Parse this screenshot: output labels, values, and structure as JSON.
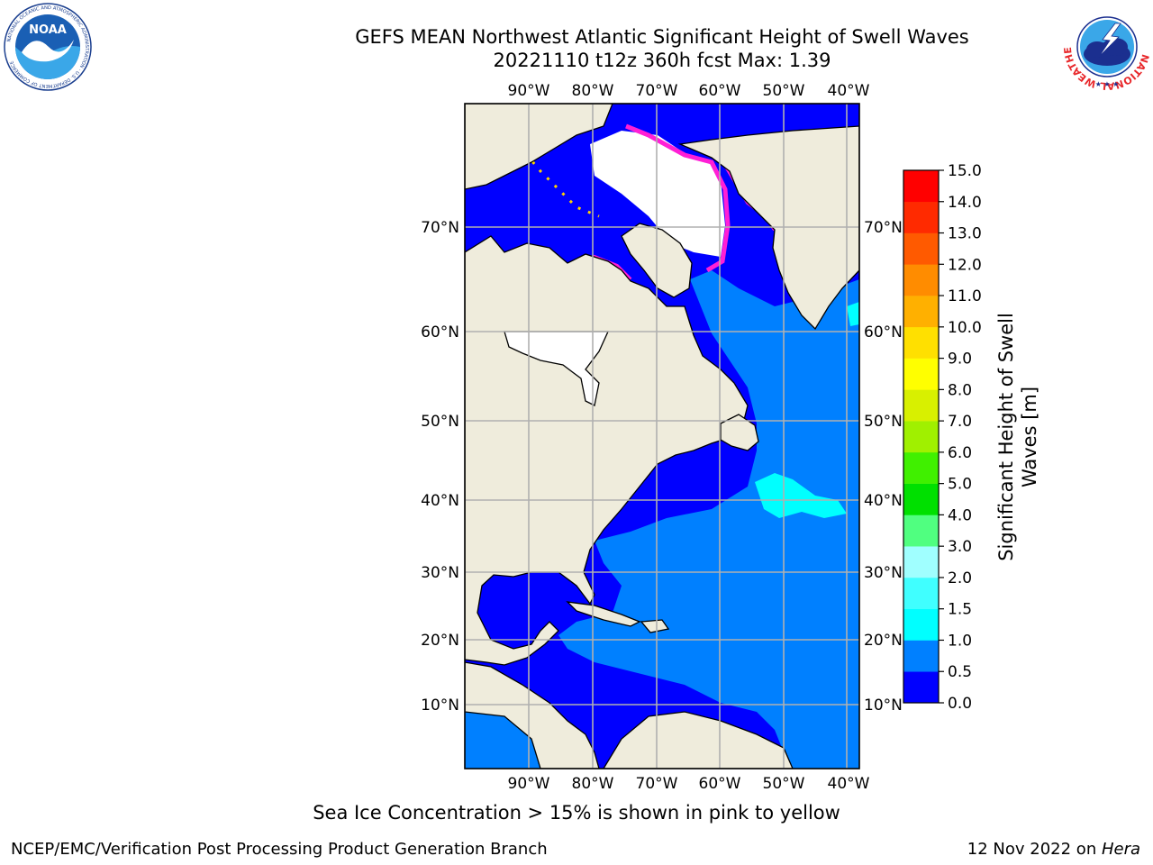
{
  "header": {
    "title_line1": "GEFS MEAN Northwest Atlantic Significant Height of Swell Waves",
    "title_line2": "20221110 t12z 360h fcst   Max: 1.39"
  },
  "map": {
    "lon_labels": [
      "90°W",
      "80°W",
      "70°W",
      "60°W",
      "50°W",
      "40°W"
    ],
    "lat_labels": [
      "70°N",
      "60°N",
      "50°N",
      "40°N",
      "30°N",
      "20°N",
      "10°N"
    ],
    "land_color": "#efecdc",
    "ice_color": "#ffffff",
    "ice_edge_colors": [
      "#ff1fd6",
      "#ff8c8c",
      "#ffd400"
    ]
  },
  "colorbar": {
    "label_line1": "Significant Height of Swell",
    "label_line2": "Waves [m]",
    "ticks": [
      "0.0",
      "0.5",
      "1.0",
      "1.5",
      "2.0",
      "3.0",
      "4.0",
      "5.0",
      "6.0",
      "7.0",
      "8.0",
      "9.0",
      "10.0",
      "11.0",
      "12.0",
      "13.0",
      "14.0",
      "15.0"
    ],
    "colors": [
      "#0000ff",
      "#0080ff",
      "#00ffff",
      "#40ffff",
      "#a0ffff",
      "#50ff80",
      "#00e000",
      "#40f000",
      "#a0f000",
      "#d8f000",
      "#ffff00",
      "#ffe000",
      "#ffb000",
      "#ff8c00",
      "#ff5a00",
      "#ff2a00",
      "#ff0000"
    ]
  },
  "caption": "Sea Ice Concentration > 15% is shown in pink to yellow",
  "footer": {
    "left": "NCEP/EMC/Verification Post Processing Product Generation Branch",
    "right_prefix": "12 Nov 2022 on ",
    "right_machine": "Hera"
  },
  "logos": {
    "noaa_text": "NOAA",
    "noaa_ring_text": "NATIONAL OCEANIC AND ATMOSPHERIC ADMINISTRATION · U.S. DEPARTMENT OF COMMERCE",
    "nws_ring_text": "NATIONAL WEATHER SERVICE"
  }
}
